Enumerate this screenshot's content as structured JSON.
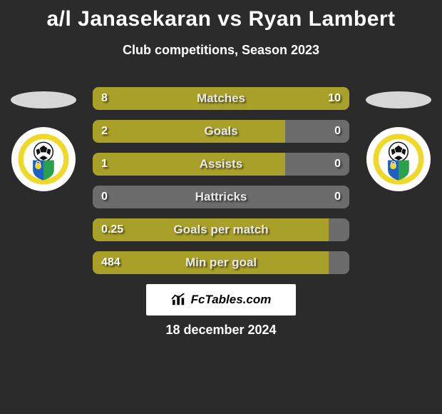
{
  "background_color": "#2b2b2b",
  "text_color": "#ffffff",
  "title": "a/l Janasekaran vs Ryan Lambert",
  "subtitle": "Club competitions, Season 2023",
  "date": "18 december 2024",
  "oval_fill": "#d7d7d7",
  "crest_bg": "#ffffff",
  "bar": {
    "track_color": "#6c6c6c",
    "fill_color": "#a8a028",
    "label_color": "#e8e8e8",
    "value_color": "#ffffff"
  },
  "footer": {
    "bg": "#ffffff",
    "text_color": "#000000",
    "label": "FcTables.com"
  },
  "crest_colors": {
    "outer": "#f0d828",
    "mid": "#ffffff",
    "ball_dark": "#111111",
    "accent_blue": "#2060c0",
    "accent_green": "#2aa048",
    "accent_yellow": "#f0d828"
  },
  "rows": [
    {
      "label": "Matches",
      "left": "8",
      "right": "10",
      "left_pct": 44,
      "right_pct": 56
    },
    {
      "label": "Goals",
      "left": "2",
      "right": "0",
      "left_pct": 75,
      "right_pct": 0
    },
    {
      "label": "Assists",
      "left": "1",
      "right": "0",
      "left_pct": 75,
      "right_pct": 0
    },
    {
      "label": "Hattricks",
      "left": "0",
      "right": "0",
      "left_pct": 0,
      "right_pct": 0
    },
    {
      "label": "Goals per match",
      "left": "0.25",
      "right": "",
      "left_pct": 92,
      "right_pct": 0
    },
    {
      "label": "Min per goal",
      "left": "484",
      "right": "",
      "left_pct": 92,
      "right_pct": 0
    }
  ]
}
